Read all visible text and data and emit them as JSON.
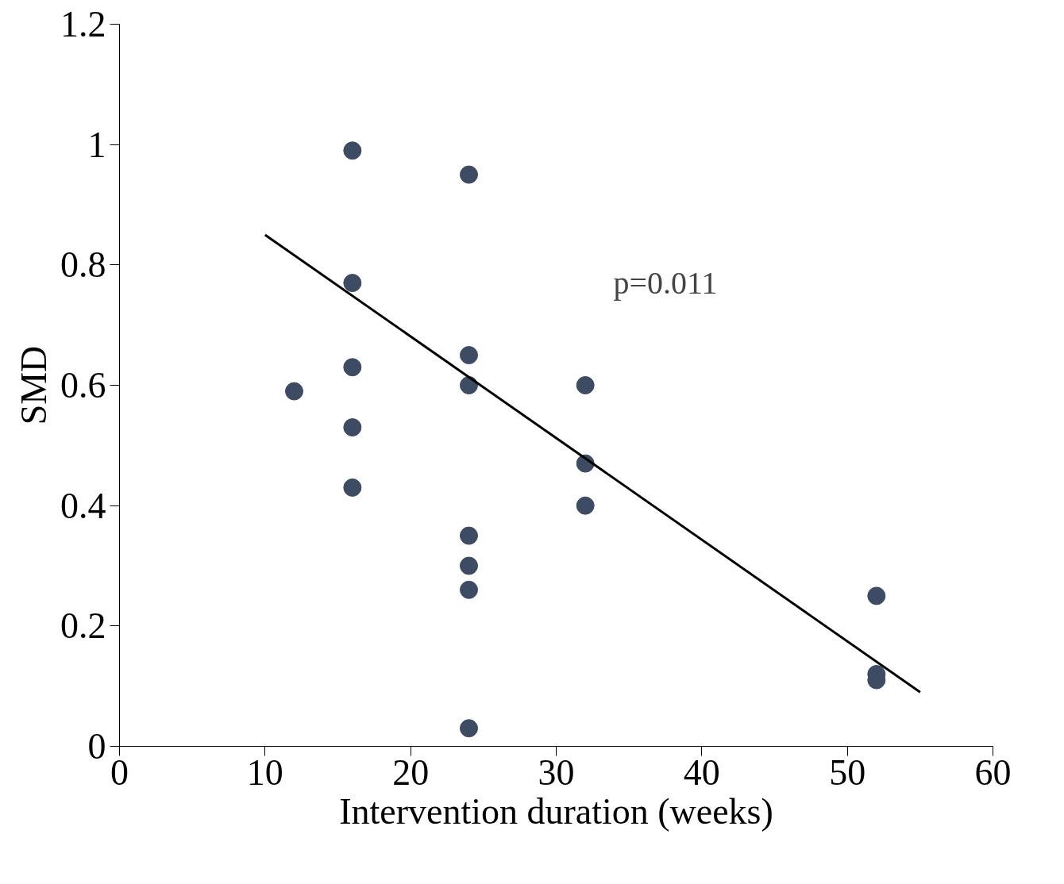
{
  "chart_data": {
    "type": "scatter",
    "xlabel": "Intervention duration (weeks)",
    "ylabel": "SMD",
    "annotations": [
      "p=0.011"
    ],
    "xlim": [
      0,
      60
    ],
    "xticks": [
      0,
      10,
      20,
      30,
      40,
      50,
      60
    ],
    "ylim": [
      0,
      1.2
    ],
    "yticks": [
      0,
      0.2,
      0.4,
      0.6,
      0.8,
      1,
      1.2
    ],
    "grid": false,
    "series": [
      {
        "marker": "circle",
        "color": "#3d4b63",
        "x": [
          12,
          16,
          16,
          16,
          16,
          16,
          24,
          24,
          24,
          24,
          24,
          24,
          24,
          32,
          32,
          32,
          52,
          52,
          52
        ],
        "values": [
          0.59,
          0.99,
          0.77,
          0.63,
          0.53,
          0.43,
          0.95,
          0.65,
          0.6,
          0.35,
          0.3,
          0.26,
          0.03,
          0.6,
          0.47,
          0.4,
          0.25,
          0.12,
          0.11
        ]
      },
      {
        "type": "line",
        "color": "#000000",
        "x": [
          10,
          55
        ],
        "values": [
          0.85,
          0.09
        ]
      }
    ]
  }
}
